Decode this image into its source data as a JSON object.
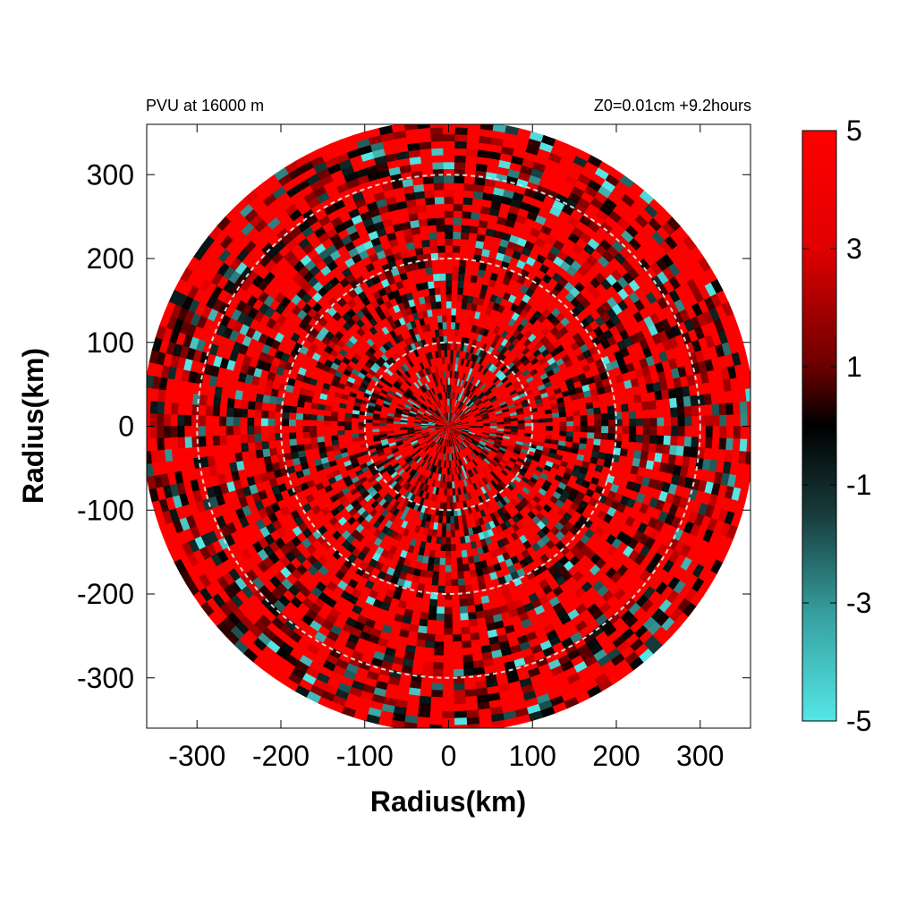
{
  "chart_data": {
    "type": "heatmap",
    "title_left": "PVU at 16000 m",
    "title_right": "Z0=0.01cm  +9.2hours",
    "xlabel": "Radius(km)",
    "ylabel": "Radius(km)",
    "xlim": [
      -360,
      360
    ],
    "ylim": [
      -360,
      360
    ],
    "x_ticks": [
      -300,
      -200,
      -100,
      0,
      100,
      200,
      300
    ],
    "y_ticks": [
      300,
      200,
      100,
      0,
      -100,
      -200,
      -300
    ],
    "domain_radius_km": 365,
    "reference_circles_km": [
      100,
      200,
      300
    ],
    "colorbar": {
      "range": [
        -5,
        5
      ],
      "tick_values": [
        5,
        3,
        1,
        -1,
        -3,
        -5
      ],
      "tick_labels": [
        "5",
        "3",
        "1",
        "-1",
        "-3",
        "-5"
      ],
      "colors": {
        "high": "#ff0000",
        "mid": "#000000",
        "low": "#55e6e6"
      }
    }
  }
}
